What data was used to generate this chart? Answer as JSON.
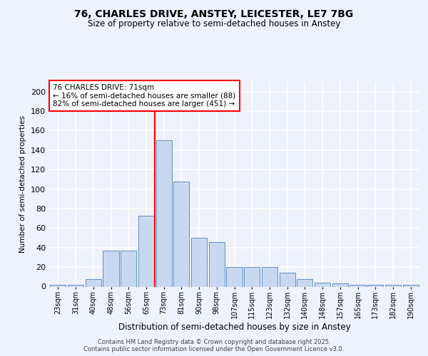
{
  "title_line1": "76, CHARLES DRIVE, ANSTEY, LEICESTER, LE7 7BG",
  "title_line2": "Size of property relative to semi-detached houses in Anstey",
  "xlabel": "Distribution of semi-detached houses by size in Anstey",
  "ylabel": "Number of semi-detached properties",
  "categories": [
    "23sqm",
    "31sqm",
    "40sqm",
    "48sqm",
    "56sqm",
    "65sqm",
    "73sqm",
    "81sqm",
    "90sqm",
    "98sqm",
    "107sqm",
    "115sqm",
    "123sqm",
    "132sqm",
    "140sqm",
    "148sqm",
    "157sqm",
    "165sqm",
    "173sqm",
    "182sqm",
    "190sqm"
  ],
  "bar_heights": [
    2,
    2,
    8,
    37,
    37,
    73,
    150,
    108,
    50,
    46,
    20,
    20,
    20,
    14,
    8,
    4,
    3,
    2,
    2,
    2,
    2
  ],
  "bar_color": "#c8d8f0",
  "bar_edge_color": "#6090c0",
  "property_bin_index": 6,
  "annotation_text": "76 CHARLES DRIVE: 71sqm\n← 16% of semi-detached houses are smaller (88)\n82% of semi-detached houses are larger (451) →",
  "ylim": [
    0,
    210
  ],
  "yticks": [
    0,
    20,
    40,
    60,
    80,
    100,
    120,
    140,
    160,
    180,
    200
  ],
  "background_color": "#eef2fb",
  "grid_color": "white",
  "footer_line1": "Contains HM Land Registry data © Crown copyright and database right 2025.",
  "footer_line2": "Contains public sector information licensed under the Open Government Licence v3.0."
}
